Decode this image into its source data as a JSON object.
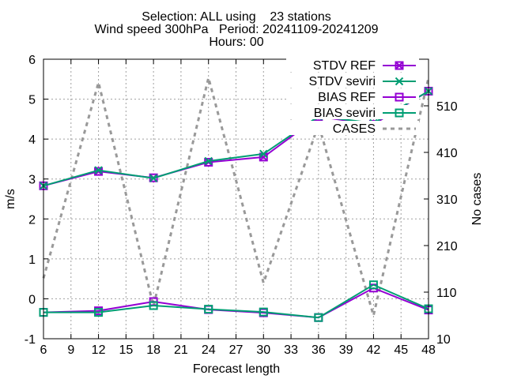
{
  "chart_data": {
    "type": "line",
    "title_lines": [
      "Selection: ALL using    23 stations",
      "Wind speed 300hPa   Period: 20241109-20241209",
      "Hours: 00"
    ],
    "xlabel": "Forecast length",
    "ylabel": "m/s",
    "y2label": "No cases",
    "xlim": [
      6,
      48
    ],
    "ylim": [
      -1,
      6
    ],
    "y2lim": [
      10,
      610
    ],
    "x_ticks": [
      6,
      9,
      12,
      15,
      18,
      21,
      24,
      27,
      30,
      33,
      36,
      39,
      42,
      45,
      48
    ],
    "y_ticks": [
      -1,
      0,
      1,
      2,
      3,
      4,
      5,
      6
    ],
    "y2_ticks": [
      10,
      110,
      210,
      310,
      410,
      510
    ],
    "grid": true,
    "legend_position": "top-right",
    "x": [
      6,
      12,
      18,
      24,
      30,
      36,
      42,
      48
    ],
    "series": [
      {
        "name": "STDV REF",
        "axis": "y",
        "color": "#9400d3",
        "marker": "x-square",
        "values": [
          2.83,
          3.19,
          3.03,
          3.42,
          3.55,
          4.56,
          4.37,
          5.2
        ]
      },
      {
        "name": "STDV seviri",
        "axis": "y",
        "color": "#009e73",
        "marker": "x",
        "values": [
          2.83,
          3.22,
          3.02,
          3.45,
          3.63,
          4.57,
          4.4,
          5.2
        ]
      },
      {
        "name": "BIAS REF",
        "axis": "y",
        "color": "#9400d3",
        "marker": "square",
        "values": [
          -0.34,
          -0.3,
          -0.07,
          -0.27,
          -0.35,
          -0.47,
          0.27,
          -0.28
        ]
      },
      {
        "name": "BIAS seviri",
        "axis": "y",
        "color": "#009e73",
        "marker": "square",
        "values": [
          -0.34,
          -0.34,
          -0.17,
          -0.26,
          -0.33,
          -0.47,
          0.35,
          -0.25
        ]
      },
      {
        "name": "CASES",
        "axis": "y2",
        "color": "#999999",
        "marker": "none",
        "dashed": true,
        "values": [
          140,
          560,
          80,
          570,
          130,
          470,
          60,
          570
        ]
      }
    ]
  }
}
